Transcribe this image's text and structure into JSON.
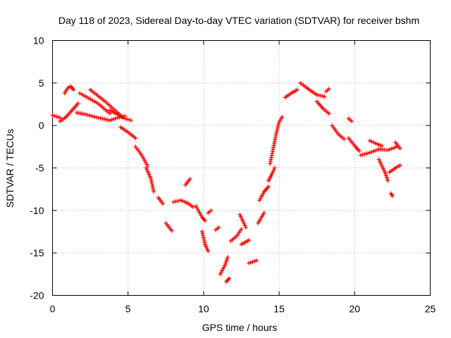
{
  "chart_data": {
    "type": "scatter",
    "title": "Day 118 of 2023, Sidereal Day-to-day VTEC variation (SDTVAR) for receiver bshm",
    "xlabel": "GPS time / hours",
    "ylabel": "SDTVAR / TECUs",
    "xlim": [
      0,
      25
    ],
    "ylim": [
      -20,
      10
    ],
    "xticks": [
      0,
      5,
      10,
      15,
      20,
      25
    ],
    "yticks": [
      -20,
      -15,
      -10,
      -5,
      0,
      5,
      10
    ],
    "grid": true,
    "marker": "plus",
    "color": "#ff0000",
    "series": [
      {
        "name": "SDTVAR",
        "segments": [
          {
            "x": [
              0.0,
              0.5
            ],
            "y": [
              1.2,
              0.9
            ]
          },
          {
            "x": [
              0.5,
              0.9,
              1.3,
              1.7
            ],
            "y": [
              0.5,
              1.0,
              1.8,
              2.6
            ]
          },
          {
            "x": [
              0.8,
              1.0,
              1.2,
              1.4
            ],
            "y": [
              3.8,
              4.4,
              4.6,
              4.2
            ]
          },
          {
            "x": [
              1.6,
              2.2,
              2.8,
              3.3,
              3.8,
              4.3,
              4.8
            ],
            "y": [
              1.5,
              1.3,
              1.0,
              0.8,
              0.6,
              0.9,
              1.1
            ]
          },
          {
            "x": [
              1.8,
              2.4,
              3.0,
              3.4,
              3.8
            ],
            "y": [
              3.8,
              3.2,
              2.6,
              2.0,
              1.4
            ]
          },
          {
            "x": [
              2.5,
              3.0,
              3.5,
              4.0,
              4.5
            ],
            "y": [
              4.2,
              3.5,
              2.8,
              2.0,
              1.2
            ]
          },
          {
            "x": [
              3.8,
              4.3,
              4.8,
              5.2
            ],
            "y": [
              1.8,
              1.3,
              0.8,
              0.6
            ]
          },
          {
            "x": [
              4.5,
              5.0,
              5.5
            ],
            "y": [
              -0.2,
              -0.8,
              -1.5
            ]
          },
          {
            "x": [
              5.5,
              5.9,
              6.3
            ],
            "y": [
              -2.5,
              -3.5,
              -4.8
            ]
          },
          {
            "x": [
              6.2,
              6.5,
              6.7
            ],
            "y": [
              -5.0,
              -6.2,
              -7.8
            ]
          },
          {
            "x": [
              7.0,
              7.3
            ],
            "y": [
              -8.5,
              -9.2
            ]
          },
          {
            "x": [
              7.5,
              7.9
            ],
            "y": [
              -11.5,
              -12.4
            ]
          },
          {
            "x": [
              8.0,
              8.5,
              9.0,
              9.3
            ],
            "y": [
              -9.0,
              -8.8,
              -9.2,
              -9.6
            ]
          },
          {
            "x": [
              8.8,
              9.1
            ],
            "y": [
              -7.0,
              -6.3
            ]
          },
          {
            "x": [
              9.5,
              9.9,
              10.1
            ],
            "y": [
              -9.5,
              -10.8,
              -11.2
            ]
          },
          {
            "x": [
              9.9,
              10.1,
              10.3
            ],
            "y": [
              -12.5,
              -14.0,
              -14.8
            ]
          },
          {
            "x": [
              10.3,
              10.5
            ],
            "y": [
              -10.3,
              -10.0
            ]
          },
          {
            "x": [
              10.8,
              11.0
            ],
            "y": [
              -12.3,
              -12.0
            ]
          },
          {
            "x": [
              11.1,
              11.4,
              11.6
            ],
            "y": [
              -17.5,
              -16.5,
              -15.5
            ]
          },
          {
            "x": [
              11.5,
              11.7
            ],
            "y": [
              -18.4,
              -18.0
            ]
          },
          {
            "x": [
              11.8,
              12.2,
              12.5
            ],
            "y": [
              -13.6,
              -13.0,
              -12.2
            ]
          },
          {
            "x": [
              12.4,
              12.8
            ],
            "y": [
              -10.5,
              -12.0
            ]
          },
          {
            "x": [
              12.5,
              13.0
            ],
            "y": [
              -14.0,
              -13.5
            ]
          },
          {
            "x": [
              13.0,
              13.5
            ],
            "y": [
              -16.2,
              -15.9
            ]
          },
          {
            "x": [
              13.6,
              14.0
            ],
            "y": [
              -11.5,
              -10.3
            ]
          },
          {
            "x": [
              13.7,
              14.0,
              14.3
            ],
            "y": [
              -8.8,
              -7.8,
              -7.2
            ]
          },
          {
            "x": [
              14.3,
              14.5,
              14.7
            ],
            "y": [
              -6.5,
              -5.8,
              -5.0
            ]
          },
          {
            "x": [
              14.4,
              14.6,
              14.8,
              15.0,
              15.2
            ],
            "y": [
              -4.5,
              -2.8,
              -1.0,
              0.4,
              1.0
            ]
          },
          {
            "x": [
              15.4,
              15.8,
              16.2
            ],
            "y": [
              3.3,
              3.8,
              4.2
            ]
          },
          {
            "x": [
              16.4,
              17.0,
              17.5,
              18.0
            ],
            "y": [
              5.0,
              4.2,
              3.6,
              3.4
            ]
          },
          {
            "x": [
              17.5,
              17.9,
              18.3
            ],
            "y": [
              2.8,
              2.0,
              1.4
            ]
          },
          {
            "x": [
              18.1,
              18.3
            ],
            "y": [
              4.0,
              4.3
            ]
          },
          {
            "x": [
              18.5,
              18.9,
              19.3
            ],
            "y": [
              0.0,
              -1.0,
              -1.6
            ]
          },
          {
            "x": [
              19.6,
              19.8
            ],
            "y": [
              0.8,
              0.5
            ]
          },
          {
            "x": [
              19.6,
              20.0,
              20.3
            ],
            "y": [
              -1.5,
              -2.4,
              -3.0
            ]
          },
          {
            "x": [
              20.4,
              21.0,
              21.6,
              22.2,
              22.8
            ],
            "y": [
              -3.5,
              -3.2,
              -2.8,
              -2.9,
              -2.5
            ]
          },
          {
            "x": [
              21.0,
              21.5,
              21.8
            ],
            "y": [
              -1.8,
              -2.2,
              -2.4
            ]
          },
          {
            "x": [
              21.6,
              22.0,
              22.2
            ],
            "y": [
              -4.0,
              -5.5,
              -6.5
            ]
          },
          {
            "x": [
              22.3,
              22.7,
              23.0
            ],
            "y": [
              -5.5,
              -5.0,
              -4.7
            ]
          },
          {
            "x": [
              22.4,
              22.5
            ],
            "y": [
              -8.0,
              -8.3
            ]
          },
          {
            "x": [
              22.7,
              23.0
            ],
            "y": [
              -2.0,
              -2.7
            ]
          }
        ]
      }
    ]
  }
}
